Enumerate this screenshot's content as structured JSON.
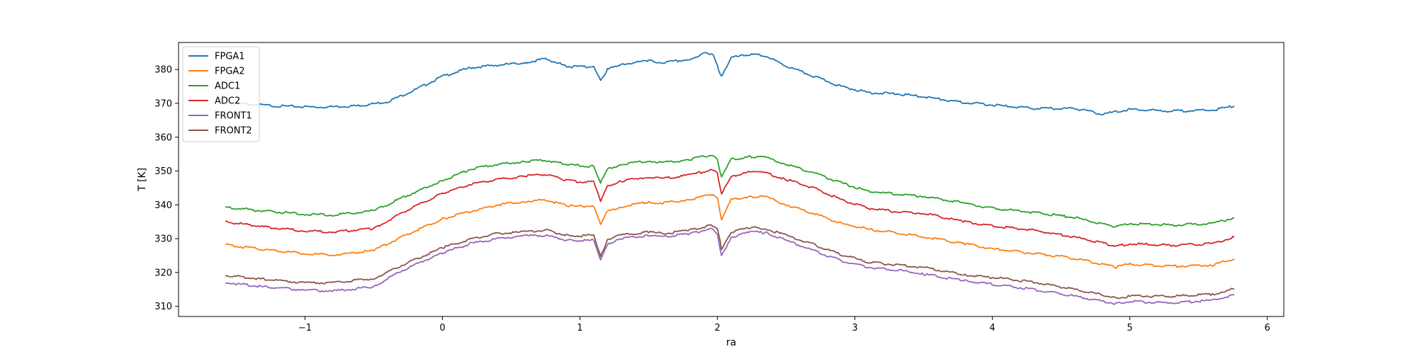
{
  "chart_data": {
    "type": "line",
    "title": "",
    "xlabel": "ra",
    "ylabel": "T [K]",
    "xlim": [
      -1.92,
      6.12
    ],
    "ylim": [
      307.0,
      388.0
    ],
    "xticks": [
      -1,
      0,
      1,
      2,
      3,
      4,
      5,
      6
    ],
    "yticks": [
      310,
      320,
      330,
      340,
      350,
      360,
      370,
      380
    ],
    "grid": false,
    "legend": "top-left",
    "series": [
      {
        "name": "FPGA1",
        "color": "#1f77b4",
        "x": [
          -1.5,
          -1.2,
          -0.9,
          -0.6,
          -0.4,
          -0.2,
          0.0,
          0.2,
          0.4,
          0.6,
          0.75,
          0.9,
          1.0,
          1.1,
          1.15,
          1.2,
          1.3,
          1.5,
          1.6,
          1.8,
          1.9,
          1.97,
          2.0,
          2.03,
          2.1,
          2.25,
          2.35,
          2.5,
          2.7,
          2.9,
          3.1,
          3.3,
          3.5,
          3.7,
          4.0,
          4.3,
          4.6,
          4.8,
          5.0,
          5.3,
          5.6,
          5.76
        ],
        "y": [
          370.0,
          369.2,
          368.9,
          369.3,
          370.5,
          374.0,
          378.0,
          380.5,
          381.3,
          382.0,
          383.2,
          381.0,
          380.8,
          381.0,
          377.0,
          380.0,
          381.5,
          382.6,
          382.0,
          383.0,
          384.8,
          384.3,
          381.0,
          377.8,
          383.5,
          384.5,
          384.0,
          381.0,
          378.0,
          375.0,
          373.2,
          372.8,
          372.0,
          370.7,
          369.5,
          368.5,
          368.5,
          366.8,
          368.2,
          367.7,
          368.0,
          369.2
        ]
      },
      {
        "name": "FPGA2",
        "color": "#ff7f0e",
        "x": [
          -1.58,
          -1.3,
          -1.0,
          -0.8,
          -0.5,
          -0.3,
          0.0,
          0.2,
          0.4,
          0.6,
          0.75,
          0.9,
          1.0,
          1.1,
          1.15,
          1.2,
          1.3,
          1.5,
          1.6,
          1.8,
          1.95,
          2.0,
          2.03,
          2.1,
          2.25,
          2.35,
          2.5,
          2.7,
          2.9,
          3.1,
          3.3,
          3.5,
          3.8,
          4.0,
          4.3,
          4.6,
          4.9,
          5.0,
          5.3,
          5.6,
          5.76
        ],
        "y": [
          328.2,
          326.8,
          325.6,
          325.2,
          326.5,
          330.5,
          335.8,
          338.0,
          340.0,
          341.0,
          341.5,
          339.8,
          339.5,
          339.8,
          334.5,
          338.0,
          339.5,
          340.8,
          340.5,
          341.5,
          343.2,
          342.0,
          335.5,
          341.5,
          342.5,
          342.3,
          340.0,
          337.5,
          334.5,
          332.8,
          331.8,
          330.5,
          328.5,
          327.0,
          325.7,
          324.2,
          321.5,
          322.5,
          321.8,
          322.2,
          324.0
        ]
      },
      {
        "name": "ADC1",
        "color": "#2ca02c",
        "x": [
          -1.58,
          -1.3,
          -1.0,
          -0.8,
          -0.5,
          -0.3,
          0.0,
          0.2,
          0.4,
          0.6,
          0.75,
          0.9,
          1.0,
          1.1,
          1.15,
          1.2,
          1.3,
          1.5,
          1.6,
          1.8,
          1.95,
          2.0,
          2.03,
          2.1,
          2.25,
          2.35,
          2.5,
          2.7,
          2.9,
          3.1,
          3.3,
          3.5,
          3.8,
          4.0,
          4.3,
          4.6,
          4.9,
          5.0,
          5.3,
          5.6,
          5.76
        ],
        "y": [
          339.3,
          338.2,
          337.2,
          337.0,
          338.2,
          342.0,
          347.2,
          350.5,
          352.0,
          352.8,
          353.2,
          352.0,
          351.5,
          351.5,
          346.5,
          350.5,
          352.0,
          353.0,
          352.5,
          353.3,
          354.8,
          353.5,
          348.0,
          353.5,
          354.2,
          354.0,
          352.0,
          349.5,
          346.5,
          344.0,
          343.2,
          342.5,
          340.5,
          339.0,
          337.8,
          336.2,
          333.5,
          334.5,
          334.0,
          334.5,
          336.2
        ]
      },
      {
        "name": "ADC2",
        "color": "#d62728",
        "x": [
          -1.58,
          -1.3,
          -1.0,
          -0.8,
          -0.5,
          -0.3,
          0.0,
          0.2,
          0.4,
          0.6,
          0.75,
          0.9,
          1.0,
          1.1,
          1.15,
          1.2,
          1.3,
          1.5,
          1.6,
          1.8,
          1.95,
          2.0,
          2.03,
          2.1,
          2.25,
          2.35,
          2.5,
          2.7,
          2.9,
          3.1,
          3.3,
          3.5,
          3.8,
          4.0,
          4.3,
          4.6,
          4.9,
          5.0,
          5.3,
          5.6,
          5.76
        ],
        "y": [
          335.0,
          333.5,
          332.3,
          332.0,
          333.0,
          337.5,
          343.5,
          346.0,
          347.5,
          348.5,
          349.0,
          347.3,
          346.8,
          347.0,
          341.0,
          345.5,
          347.0,
          348.3,
          347.8,
          348.8,
          350.3,
          349.5,
          343.0,
          348.5,
          349.8,
          349.5,
          347.5,
          345.0,
          341.5,
          339.0,
          338.0,
          337.5,
          335.0,
          333.8,
          332.5,
          330.5,
          327.8,
          328.5,
          328.0,
          328.5,
          330.5
        ]
      },
      {
        "name": "FRONT1",
        "color": "#9467bd",
        "x": [
          -1.58,
          -1.3,
          -1.0,
          -0.8,
          -0.5,
          -0.3,
          0.0,
          0.2,
          0.4,
          0.6,
          0.75,
          0.9,
          1.0,
          1.1,
          1.15,
          1.2,
          1.3,
          1.5,
          1.6,
          1.8,
          1.95,
          2.0,
          2.03,
          2.1,
          2.25,
          2.35,
          2.5,
          2.7,
          2.9,
          3.1,
          3.3,
          3.5,
          3.8,
          4.0,
          4.3,
          4.6,
          4.9,
          5.0,
          5.3,
          5.6,
          5.76
        ],
        "y": [
          317.0,
          315.8,
          314.8,
          314.5,
          315.8,
          320.5,
          325.8,
          328.5,
          330.0,
          330.8,
          331.0,
          329.5,
          329.5,
          329.5,
          323.5,
          328.5,
          330.0,
          331.0,
          330.5,
          331.5,
          333.0,
          331.5,
          324.8,
          330.5,
          332.0,
          331.8,
          329.5,
          326.5,
          323.5,
          321.5,
          320.8,
          319.5,
          317.5,
          316.5,
          315.0,
          313.0,
          310.8,
          311.5,
          311.0,
          311.8,
          313.3
        ]
      },
      {
        "name": "FRONT2",
        "color": "#8c564b",
        "x": [
          -1.58,
          -1.3,
          -1.0,
          -0.8,
          -0.5,
          -0.3,
          0.0,
          0.2,
          0.4,
          0.6,
          0.75,
          0.9,
          1.0,
          1.1,
          1.15,
          1.2,
          1.3,
          1.5,
          1.6,
          1.8,
          1.95,
          2.0,
          2.03,
          2.1,
          2.25,
          2.35,
          2.5,
          2.7,
          2.9,
          3.1,
          3.3,
          3.5,
          3.8,
          4.0,
          4.3,
          4.6,
          4.9,
          5.0,
          5.3,
          5.6,
          5.76
        ],
        "y": [
          319.2,
          318.0,
          317.0,
          317.0,
          318.2,
          322.0,
          327.3,
          329.8,
          331.5,
          332.0,
          332.5,
          331.0,
          330.8,
          331.0,
          324.5,
          329.8,
          331.0,
          332.0,
          331.5,
          332.5,
          334.0,
          333.2,
          327.0,
          332.0,
          333.3,
          333.0,
          331.0,
          328.3,
          325.3,
          323.0,
          322.3,
          321.5,
          319.3,
          318.5,
          317.2,
          315.0,
          312.5,
          313.0,
          313.0,
          313.5,
          315.2
        ]
      }
    ]
  }
}
